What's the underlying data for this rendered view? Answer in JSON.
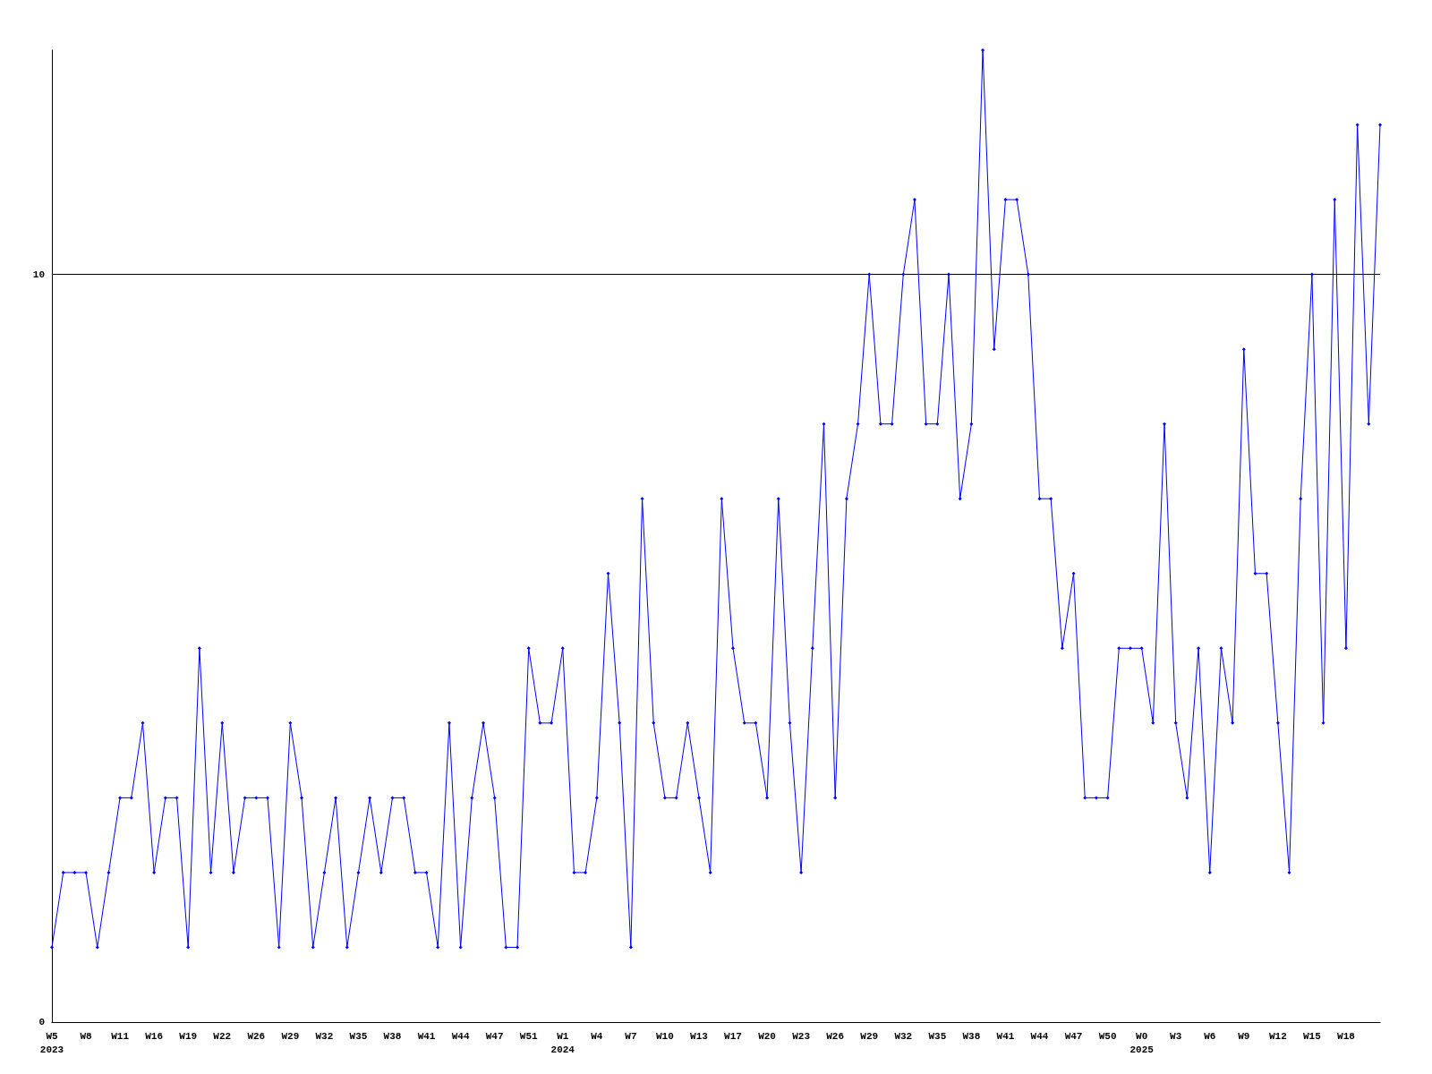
{
  "chart_data": {
    "type": "line",
    "categories": [
      "W5\n2023",
      null,
      null,
      "W8",
      null,
      null,
      "W11",
      null,
      null,
      "W16",
      null,
      null,
      "W19",
      null,
      null,
      "W22",
      null,
      null,
      "W26",
      null,
      null,
      "W29",
      null,
      null,
      "W32",
      null,
      null,
      "W35",
      null,
      null,
      "W38",
      null,
      null,
      "W41",
      null,
      null,
      "W44",
      null,
      null,
      "W47",
      null,
      null,
      "W51",
      null,
      null,
      "W1\n2024",
      null,
      null,
      "W4",
      null,
      null,
      "W7",
      null,
      null,
      "W10",
      null,
      null,
      "W13",
      null,
      null,
      "W17",
      null,
      null,
      "W20",
      null,
      null,
      "W23",
      null,
      null,
      "W26",
      null,
      null,
      "W29",
      null,
      null,
      "W32",
      null,
      null,
      "W35",
      null,
      null,
      "W38",
      null,
      null,
      "W41",
      null,
      null,
      "W44",
      null,
      null,
      "W47",
      null,
      null,
      "W50",
      null,
      null,
      "W0\n2025",
      null,
      null,
      "W3",
      null,
      null,
      "W6",
      null,
      null,
      "W9",
      null,
      null,
      "W12",
      null,
      null,
      "W15",
      null,
      null,
      "W18",
      null,
      null,
      null
    ],
    "series": [
      {
        "color": "#0000ff",
        "values": [
          1,
          2,
          2,
          2,
          1,
          2,
          3,
          3,
          4,
          2,
          3,
          3,
          1,
          5,
          2,
          4,
          2,
          3,
          3,
          3,
          1,
          4,
          3,
          1,
          2,
          3,
          1,
          2,
          3,
          2,
          3,
          3,
          2,
          2,
          1,
          4,
          1,
          3,
          4,
          3,
          1,
          1,
          5,
          4,
          4,
          5,
          2,
          2,
          3,
          6,
          4,
          1,
          7,
          4,
          3,
          3,
          4,
          3,
          2,
          7,
          5,
          4,
          4,
          3,
          7,
          4,
          2,
          5,
          8,
          3,
          7,
          8,
          10,
          8,
          8,
          10,
          11,
          8,
          8,
          10,
          7,
          8,
          13,
          9,
          11,
          11,
          10,
          7,
          7,
          5,
          6,
          3,
          3,
          3,
          5,
          5,
          5,
          4,
          8,
          4,
          3,
          5,
          2,
          5,
          4,
          9,
          6,
          6,
          4,
          2,
          7,
          10,
          4,
          11,
          5,
          12,
          8,
          12
        ]
      }
    ],
    "ylim": [
      0,
      13
    ],
    "yticks": [
      0,
      10
    ],
    "grid": "y",
    "marker": "diamond",
    "line_style": "solid"
  }
}
